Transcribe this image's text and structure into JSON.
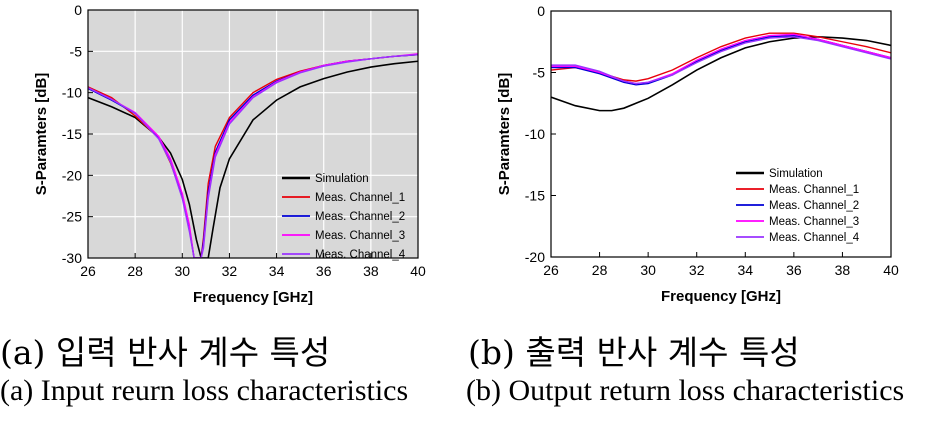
{
  "chart_data": [
    {
      "type": "line",
      "xlabel": "Frequency [GHz]",
      "ylabel": "S-Paramters [dB]",
      "xlim": [
        26,
        40
      ],
      "ylim": [
        -30,
        0
      ],
      "xticks": [
        26,
        28,
        30,
        32,
        34,
        36,
        38,
        40
      ],
      "yticks": [
        0,
        -5,
        -10,
        -15,
        -20,
        -25,
        -30
      ],
      "grid": true,
      "background": "#d8d8d8",
      "legend_position": "bottom-right",
      "series": [
        {
          "name": "Simulation",
          "color": "#000000",
          "x": [
            26,
            27,
            28,
            29,
            29.5,
            30,
            30.3,
            30.6,
            30.8,
            30.9,
            31.0,
            31.1,
            31.3,
            31.6,
            32,
            33,
            34,
            35,
            36,
            37,
            38,
            39,
            40
          ],
          "y": [
            -10.6,
            -11.7,
            -13.0,
            -15.4,
            -17.3,
            -20.5,
            -23.5,
            -27.8,
            -30,
            -30,
            -30,
            -30,
            -26.5,
            -21.5,
            -18.0,
            -13.3,
            -10.9,
            -9.3,
            -8.3,
            -7.5,
            -6.9,
            -6.5,
            -6.2
          ]
        },
        {
          "name": "Meas. Channel_1",
          "color": "#e8000b",
          "x": [
            26,
            27,
            28,
            29,
            29.5,
            30,
            30.3,
            30.5,
            30.6,
            30.7,
            30.8,
            30.9,
            31.1,
            31.4,
            32,
            33,
            34,
            35,
            36,
            37,
            38,
            39,
            40
          ],
          "y": [
            -9.3,
            -10.6,
            -12.8,
            -15.5,
            -18.5,
            -22.5,
            -26.5,
            -30,
            -30,
            -30,
            -30,
            -27.5,
            -21.0,
            -16.5,
            -13.0,
            -10.0,
            -8.4,
            -7.4,
            -6.7,
            -6.2,
            -5.9,
            -5.6,
            -5.4
          ]
        },
        {
          "name": "Meas. Channel_2",
          "color": "#0000d6",
          "x": [
            26,
            27,
            28,
            29,
            29.5,
            30,
            30.3,
            30.5,
            30.6,
            30.7,
            30.8,
            30.9,
            31.1,
            31.4,
            32,
            33,
            34,
            35,
            36,
            37,
            38,
            39,
            40
          ],
          "y": [
            -9.5,
            -10.9,
            -12.5,
            -15.5,
            -18.2,
            -22.5,
            -26.3,
            -30,
            -30,
            -30,
            -30,
            -28.0,
            -22.0,
            -17.2,
            -13.3,
            -10.3,
            -8.6,
            -7.5,
            -6.7,
            -6.2,
            -5.9,
            -5.6,
            -5.4
          ]
        },
        {
          "name": "Meas. Channel_3",
          "color": "#ff00ff",
          "x": [
            26,
            27,
            28,
            29,
            29.5,
            30,
            30.3,
            30.5,
            30.6,
            30.7,
            30.8,
            30.9,
            31.1,
            31.4,
            32,
            33,
            34,
            35,
            36,
            37,
            38,
            39,
            40
          ],
          "y": [
            -9.4,
            -10.8,
            -12.4,
            -15.3,
            -18.0,
            -22.2,
            -26.0,
            -30,
            -30,
            -30,
            -30,
            -28.5,
            -22.5,
            -17.5,
            -13.6,
            -10.5,
            -8.7,
            -7.5,
            -6.7,
            -6.2,
            -5.9,
            -5.6,
            -5.3
          ]
        },
        {
          "name": "Meas. Channel_4",
          "color": "#9a33ff",
          "x": [
            26,
            27,
            28,
            29,
            29.5,
            30,
            30.3,
            30.5,
            30.6,
            30.7,
            30.8,
            30.9,
            31.1,
            31.4,
            32,
            33,
            34,
            35,
            36,
            37,
            38,
            39,
            40
          ],
          "y": [
            -9.4,
            -10.8,
            -12.5,
            -15.6,
            -18.4,
            -22.8,
            -26.8,
            -30,
            -30,
            -30,
            -30,
            -28.8,
            -22.8,
            -17.8,
            -13.8,
            -10.6,
            -8.8,
            -7.6,
            -6.8,
            -6.3,
            -5.9,
            -5.6,
            -5.4
          ]
        }
      ]
    },
    {
      "type": "line",
      "xlabel": "Frequency [GHz]",
      "ylabel": "S-Paramters [dB]",
      "xlim": [
        26,
        40
      ],
      "ylim": [
        -20,
        0
      ],
      "xticks": [
        26,
        28,
        30,
        32,
        34,
        36,
        38,
        40
      ],
      "yticks": [
        0,
        -5,
        -10,
        -15,
        -20
      ],
      "grid": false,
      "background": "#ffffff",
      "legend_position": "bottom-right",
      "series": [
        {
          "name": "Simulation",
          "color": "#000000",
          "x": [
            26,
            27,
            28,
            28.5,
            29,
            30,
            31,
            32,
            33,
            34,
            35,
            36,
            37,
            38,
            39,
            40
          ],
          "y": [
            -7.0,
            -7.7,
            -8.1,
            -8.1,
            -7.9,
            -7.1,
            -6.0,
            -4.8,
            -3.8,
            -3.0,
            -2.5,
            -2.2,
            -2.1,
            -2.2,
            -2.4,
            -2.8
          ]
        },
        {
          "name": "Meas. Channel_1",
          "color": "#e8000b",
          "x": [
            26,
            27,
            28,
            29,
            29.5,
            30,
            31,
            32,
            33,
            34,
            35,
            36,
            37,
            38,
            39,
            40
          ],
          "y": [
            -4.8,
            -4.6,
            -5.0,
            -5.6,
            -5.7,
            -5.5,
            -4.8,
            -3.8,
            -2.9,
            -2.2,
            -1.8,
            -1.8,
            -2.1,
            -2.5,
            -2.9,
            -3.4
          ]
        },
        {
          "name": "Meas. Channel_2",
          "color": "#0000d6",
          "x": [
            26,
            27,
            28,
            29,
            29.5,
            30,
            31,
            32,
            33,
            34,
            35,
            36,
            37,
            38,
            39,
            40
          ],
          "y": [
            -4.6,
            -4.6,
            -5.1,
            -5.8,
            -6.0,
            -5.9,
            -5.2,
            -4.1,
            -3.2,
            -2.5,
            -2.1,
            -2.0,
            -2.3,
            -2.8,
            -3.3,
            -3.8
          ]
        },
        {
          "name": "Meas. Channel_3",
          "color": "#ff00ff",
          "x": [
            26,
            27,
            28,
            29,
            29.5,
            30,
            31,
            32,
            33,
            34,
            35,
            36,
            37,
            38,
            39,
            40
          ],
          "y": [
            -4.5,
            -4.5,
            -5.0,
            -5.7,
            -5.9,
            -5.8,
            -5.1,
            -4.0,
            -3.1,
            -2.4,
            -2.0,
            -1.9,
            -2.3,
            -2.8,
            -3.3,
            -3.8
          ]
        },
        {
          "name": "Meas. Channel_4",
          "color": "#9a33ff",
          "x": [
            26,
            27,
            28,
            29,
            29.5,
            30,
            31,
            32,
            33,
            34,
            35,
            36,
            37,
            38,
            39,
            40
          ],
          "y": [
            -4.4,
            -4.4,
            -4.9,
            -5.7,
            -5.9,
            -5.8,
            -5.2,
            -4.2,
            -3.3,
            -2.6,
            -2.2,
            -2.1,
            -2.4,
            -2.9,
            -3.4,
            -3.9
          ]
        }
      ]
    }
  ],
  "captions": {
    "a_ko": "(a) 입력 반사 계수 특성",
    "b_ko": "(b) 출력 반사 계수 특성",
    "a_en": "(a) Input reurn loss characteristics",
    "b_en": "(b) Output return loss characteristics"
  }
}
